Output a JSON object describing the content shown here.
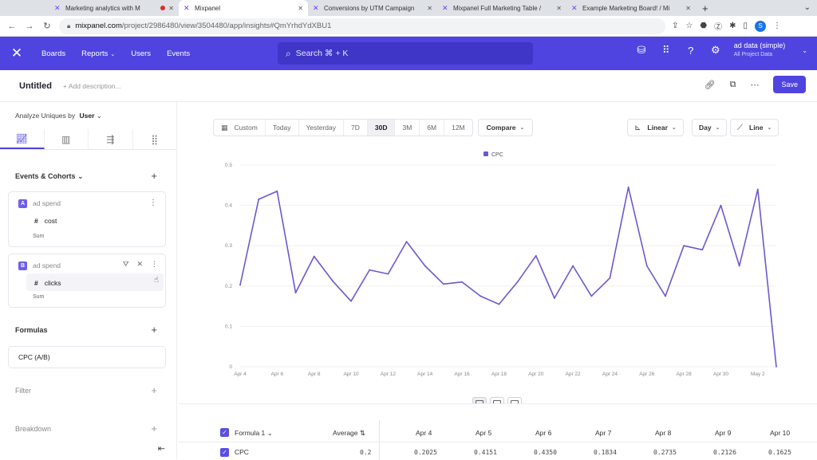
{
  "browser": {
    "tabs": [
      {
        "title": "Marketing analytics with M",
        "has_record_dot": true
      },
      {
        "title": "Mixpanel",
        "active": true
      },
      {
        "title": "Conversions by UTM Campaign"
      },
      {
        "title": "Mixpanel Full Marketing Table /"
      },
      {
        "title": "Example Marketing Board! / Mi"
      }
    ],
    "url_host": "mixpanel.com",
    "url_path": "/project/2986480/view/3504480/app/insights#QmYrhdYdXBU1",
    "profile_initial": "S"
  },
  "nav": {
    "items": [
      "Boards",
      "Reports",
      "Users",
      "Events"
    ],
    "search_placeholder": "Search ⌘ + K",
    "project_name": "ad data (simple)",
    "project_sub": "All Project Data"
  },
  "report": {
    "title": "Untitled",
    "add_description": "+ Add description...",
    "save_label": "Save"
  },
  "left": {
    "analyze_label": "Analyze Uniques by",
    "analyze_value": "User",
    "events_heading": "Events & Cohorts",
    "event_a": {
      "letter": "A",
      "name": "ad spend",
      "property": "cost",
      "aggregation": "Sum"
    },
    "event_b": {
      "letter": "B",
      "name": "ad spend",
      "property": "clicks",
      "aggregation": "Sum"
    },
    "formulas_heading": "Formulas",
    "formula": "CPC (A/B)",
    "filter_heading": "Filter",
    "breakdown_heading": "Breakdown"
  },
  "toolbar": {
    "ranges": [
      "Custom",
      "Today",
      "Yesterday",
      "7D",
      "30D",
      "3M",
      "6M",
      "12M"
    ],
    "active_range": "30D",
    "compare": "Compare",
    "scale": "Linear",
    "interval": "Day",
    "chart_type": "Line"
  },
  "chart_data": {
    "type": "line",
    "legend": "CPC",
    "accent": "#6a5acd",
    "ylim": [
      0,
      0.5
    ],
    "yticks": [
      "0",
      "0.1",
      "0.2",
      "0.3",
      "0.4",
      "0.5"
    ],
    "x_tick_labels": [
      "Apr 4",
      "Apr 6",
      "Apr 8",
      "Apr 10",
      "Apr 12",
      "Apr 14",
      "Apr 16",
      "Apr 18",
      "Apr 20",
      "Apr 22",
      "Apr 24",
      "Apr 26",
      "Apr 28",
      "Apr 30",
      "May 2"
    ],
    "x": [
      "Apr 4",
      "Apr 5",
      "Apr 6",
      "Apr 7",
      "Apr 8",
      "Apr 9",
      "Apr 10",
      "Apr 11",
      "Apr 12",
      "Apr 13",
      "Apr 14",
      "Apr 15",
      "Apr 16",
      "Apr 17",
      "Apr 18",
      "Apr 19",
      "Apr 20",
      "Apr 21",
      "Apr 22",
      "Apr 23",
      "Apr 24",
      "Apr 25",
      "Apr 26",
      "Apr 27",
      "Apr 28",
      "Apr 29",
      "Apr 30",
      "May 1",
      "May 2",
      "May 3"
    ],
    "values": [
      0.2025,
      0.4151,
      0.435,
      0.1834,
      0.2735,
      0.2126,
      0.1625,
      0.24,
      0.23,
      0.31,
      0.25,
      0.205,
      0.21,
      0.175,
      0.155,
      0.21,
      0.275,
      0.17,
      0.25,
      0.175,
      0.22,
      0.445,
      0.25,
      0.175,
      0.3,
      0.29,
      0.4,
      0.25,
      0.44,
      0.0
    ]
  },
  "table": {
    "formula_col": "Formula 1",
    "average_label": "Average",
    "date_headers": [
      "Apr 4",
      "Apr 5",
      "Apr 6",
      "Apr 7",
      "Apr 8",
      "Apr 9",
      "Apr 10"
    ],
    "row_label": "CPC",
    "row_average": "0.2",
    "row_values": [
      "0.2025",
      "0.4151",
      "0.4350",
      "0.1834",
      "0.2735",
      "0.2126",
      "0.1625"
    ]
  }
}
